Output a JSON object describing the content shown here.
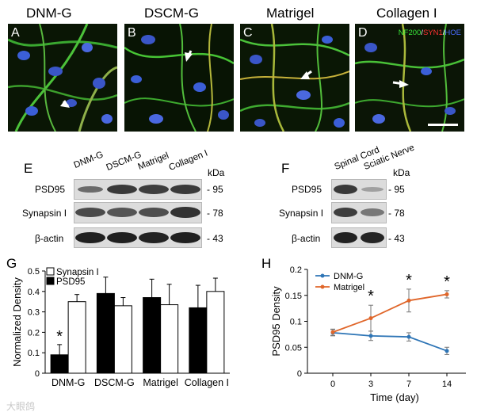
{
  "micrographs": {
    "titles": [
      "DNM-G",
      "DSCM-G",
      "Matrigel",
      "Collagen I"
    ],
    "letters": [
      "A",
      "B",
      "C",
      "D"
    ],
    "stain_legend": {
      "nf200": {
        "text": "NF200",
        "color": "#39e639"
      },
      "slash1": "/",
      "syn1": {
        "text": "SYN1",
        "color": "#ff3030"
      },
      "slash2": "/",
      "hoe": {
        "text": "HOE",
        "color": "#4a6cff"
      }
    }
  },
  "blot_e": {
    "letter": "E",
    "lanes": [
      "DNM-G",
      "DSCM-G",
      "Matrigel",
      "Collagen I"
    ],
    "kda_header": "kDa",
    "rows": [
      {
        "label": "PSD95",
        "kda": "- 95"
      },
      {
        "label": "Synapsin I",
        "kda": "- 78"
      },
      {
        "label": "β-actin",
        "kda": "- 43"
      }
    ]
  },
  "blot_f": {
    "letter": "F",
    "lanes": [
      "Spinal Cord",
      "Sciatic Nerve"
    ],
    "kda_header": "kDa",
    "rows": [
      {
        "label": "PSD95",
        "kda": "- 95"
      },
      {
        "label": "Synapsin I",
        "kda": "- 78"
      },
      {
        "label": "β-actin",
        "kda": "- 43"
      }
    ]
  },
  "chart_data": [
    {
      "panel": "G",
      "type": "bar",
      "categories": [
        "DNM-G",
        "DSCM-G",
        "Matrigel",
        "Collagen I"
      ],
      "series": [
        {
          "name": "PSD95",
          "color": "#000000",
          "values": [
            0.09,
            0.39,
            0.37,
            0.32
          ],
          "errors": [
            0.05,
            0.08,
            0.09,
            0.11
          ]
        },
        {
          "name": "Synapsin I",
          "color": "#ffffff",
          "values": [
            0.35,
            0.33,
            0.335,
            0.4
          ],
          "errors": [
            0.035,
            0.04,
            0.1,
            0.065
          ]
        }
      ],
      "ylabel": "Normalized Density",
      "ylim": [
        0,
        0.5
      ],
      "yticks": [
        "0",
        "0.1",
        "0.2",
        "0.3",
        "0.4",
        "0.5"
      ],
      "annotations": [
        {
          "text": "*",
          "category": "DNM-G"
        }
      ],
      "legend_position": "top-left"
    },
    {
      "panel": "H",
      "type": "line",
      "x": [
        0,
        3,
        7,
        14
      ],
      "xticks": [
        "0",
        "3",
        "7",
        "14"
      ],
      "series": [
        {
          "name": "DNM-G",
          "color": "#2e75b6",
          "values": [
            0.078,
            0.072,
            0.07,
            0.043
          ],
          "errors": [
            0.006,
            0.009,
            0.008,
            0.007
          ]
        },
        {
          "name": "Matrigel",
          "color": "#e0662a",
          "values": [
            0.079,
            0.106,
            0.14,
            0.152
          ],
          "errors": [
            0.006,
            0.025,
            0.022,
            0.007
          ]
        }
      ],
      "xlabel": "Time (day)",
      "ylabel": "PSD95 Density",
      "ylim": [
        0,
        0.2
      ],
      "yticks": [
        "0",
        "0.05",
        "0.1",
        "0.15",
        "0.2"
      ],
      "annotations": [
        {
          "text": "*",
          "x": 3
        },
        {
          "text": "*",
          "x": 7
        },
        {
          "text": "*",
          "x": 14
        }
      ],
      "legend_position": "top-left"
    }
  ],
  "panel_letters": {
    "g": "G",
    "h": "H"
  },
  "watermark": "大眼鸽"
}
